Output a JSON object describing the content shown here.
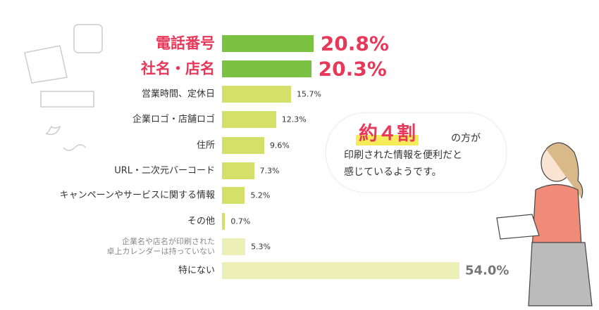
{
  "chart_data": {
    "type": "bar",
    "categories": [
      "電話番号",
      "社名・店名",
      "営業時間、定休日",
      "企業ロゴ・店舗ロゴ",
      "住所",
      "URL・二次元バーコード",
      "キャンペーンやサービスに関する情報",
      "その他",
      "企業名や店名が印刷された\n卓上カレンダーは持っていない",
      "特にない"
    ],
    "values": [
      20.8,
      20.3,
      15.7,
      12.3,
      9.6,
      7.3,
      5.2,
      0.7,
      5.3,
      54.0
    ],
    "value_labels": [
      "20.8%",
      "20.3%",
      "15.7%",
      "12.3%",
      "9.6%",
      "7.3%",
      "5.2%",
      "0.7%",
      "5.3%",
      "54.0%"
    ],
    "colors": [
      "#7cc242",
      "#7cc242",
      "#d5e06a",
      "#d5e06a",
      "#d5e06a",
      "#d5e06a",
      "#d5e06a",
      "#d5e06a",
      "#edf0b6",
      "#edf0b6"
    ],
    "xlim": [
      0,
      54
    ],
    "annotation": [
      "約４割",
      "の方が",
      "印刷された情報を便利だと",
      "感じているようです。"
    ]
  }
}
